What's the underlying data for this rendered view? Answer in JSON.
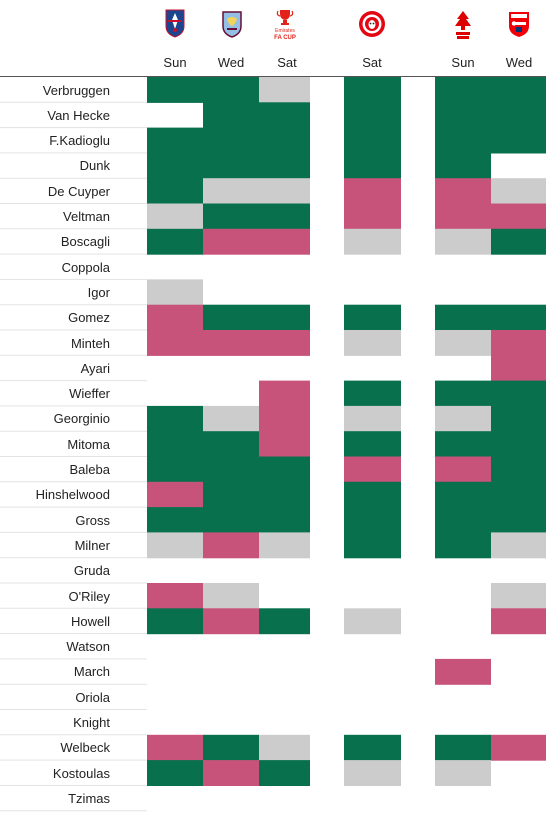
{
  "colors": {
    "start": "#09704e",
    "sub": "#c7537a",
    "unused": "#cccccc",
    "rule": "#e3e3e3",
    "header_rule": "#555555"
  },
  "matches": [
    {
      "crest": "crystal-palace-crest",
      "day": "Sun"
    },
    {
      "crest": "aston-villa-crest",
      "day": "Wed"
    },
    {
      "crest": "emirates-fa-cup-crest",
      "crest_text": "Emirates FA CUP",
      "day": "Sat"
    },
    {
      "crest": "",
      "day": ""
    },
    {
      "crest": "brentford-crest",
      "day": "Sat"
    },
    {
      "crest": "",
      "day": ""
    },
    {
      "crest": "nottingham-forest-crest",
      "day": "Sun"
    },
    {
      "crest": "arsenal-crest",
      "day": "Wed"
    }
  ],
  "chart_data": {
    "type": "heatmap",
    "legend_codes": {
      "S": "start",
      "B": "sub",
      "U": "unused",
      "N": "none"
    },
    "rows": [
      {
        "player": "Verbruggen",
        "cells": [
          "S",
          "S",
          "U",
          "N",
          "S",
          "N",
          "S",
          "S"
        ]
      },
      {
        "player": "Van Hecke",
        "cells": [
          "N",
          "S",
          "S",
          "N",
          "S",
          "N",
          "S",
          "S"
        ]
      },
      {
        "player": "F.Kadioglu",
        "cells": [
          "S",
          "S",
          "S",
          "N",
          "S",
          "N",
          "S",
          "S"
        ]
      },
      {
        "player": "Dunk",
        "cells": [
          "S",
          "S",
          "S",
          "N",
          "S",
          "N",
          "S",
          "N"
        ]
      },
      {
        "player": "De Cuyper",
        "cells": [
          "S",
          "U",
          "U",
          "N",
          "B",
          "N",
          "B",
          "U"
        ]
      },
      {
        "player": "Veltman",
        "cells": [
          "U",
          "S",
          "S",
          "N",
          "B",
          "N",
          "B",
          "B"
        ]
      },
      {
        "player": "Boscagli",
        "cells": [
          "S",
          "B",
          "B",
          "N",
          "U",
          "N",
          "U",
          "S"
        ]
      },
      {
        "player": "Coppola",
        "cells": [
          "N",
          "N",
          "N",
          "N",
          "N",
          "N",
          "N",
          "N"
        ]
      },
      {
        "player": "Igor",
        "cells": [
          "U",
          "N",
          "N",
          "N",
          "N",
          "N",
          "N",
          "N"
        ]
      },
      {
        "player": "Gomez",
        "cells": [
          "B",
          "S",
          "S",
          "N",
          "S",
          "N",
          "S",
          "S"
        ]
      },
      {
        "player": "Minteh",
        "cells": [
          "B",
          "B",
          "B",
          "N",
          "U",
          "N",
          "U",
          "B"
        ]
      },
      {
        "player": "Ayari",
        "cells": [
          "N",
          "N",
          "N",
          "N",
          "N",
          "N",
          "N",
          "B"
        ]
      },
      {
        "player": "Wieffer",
        "cells": [
          "N",
          "N",
          "B",
          "N",
          "S",
          "N",
          "S",
          "S"
        ]
      },
      {
        "player": "Georginio",
        "cells": [
          "S",
          "U",
          "B",
          "N",
          "U",
          "N",
          "U",
          "S"
        ]
      },
      {
        "player": "Mitoma",
        "cells": [
          "S",
          "S",
          "B",
          "N",
          "S",
          "N",
          "S",
          "S"
        ]
      },
      {
        "player": "Baleba",
        "cells": [
          "S",
          "S",
          "S",
          "N",
          "B",
          "N",
          "B",
          "S"
        ]
      },
      {
        "player": "Hinshelwood",
        "cells": [
          "B",
          "S",
          "S",
          "N",
          "S",
          "N",
          "S",
          "S"
        ]
      },
      {
        "player": "Gross",
        "cells": [
          "S",
          "S",
          "S",
          "N",
          "S",
          "N",
          "S",
          "S"
        ]
      },
      {
        "player": "Milner",
        "cells": [
          "U",
          "B",
          "U",
          "N",
          "S",
          "N",
          "S",
          "U"
        ]
      },
      {
        "player": "Gruda",
        "cells": [
          "N",
          "N",
          "N",
          "N",
          "N",
          "N",
          "N",
          "N"
        ]
      },
      {
        "player": "O'Riley",
        "cells": [
          "B",
          "U",
          "N",
          "N",
          "N",
          "N",
          "N",
          "U"
        ]
      },
      {
        "player": "Howell",
        "cells": [
          "S",
          "B",
          "S",
          "N",
          "U",
          "N",
          "N",
          "B"
        ]
      },
      {
        "player": "Watson",
        "cells": [
          "N",
          "N",
          "N",
          "N",
          "N",
          "N",
          "N",
          "N"
        ]
      },
      {
        "player": "March",
        "cells": [
          "N",
          "N",
          "N",
          "N",
          "N",
          "N",
          "B",
          "N"
        ]
      },
      {
        "player": "Oriola",
        "cells": [
          "N",
          "N",
          "N",
          "N",
          "N",
          "N",
          "N",
          "N"
        ]
      },
      {
        "player": "Knight",
        "cells": [
          "N",
          "N",
          "N",
          "N",
          "N",
          "N",
          "N",
          "N"
        ]
      },
      {
        "player": "Welbeck",
        "cells": [
          "B",
          "S",
          "U",
          "N",
          "S",
          "N",
          "S",
          "B"
        ]
      },
      {
        "player": "Kostoulas",
        "cells": [
          "S",
          "B",
          "S",
          "N",
          "U",
          "N",
          "U",
          "N"
        ]
      },
      {
        "player": "Tzimas",
        "cells": [
          "N",
          "N",
          "N",
          "N",
          "N",
          "N",
          "N",
          "N"
        ]
      }
    ]
  }
}
